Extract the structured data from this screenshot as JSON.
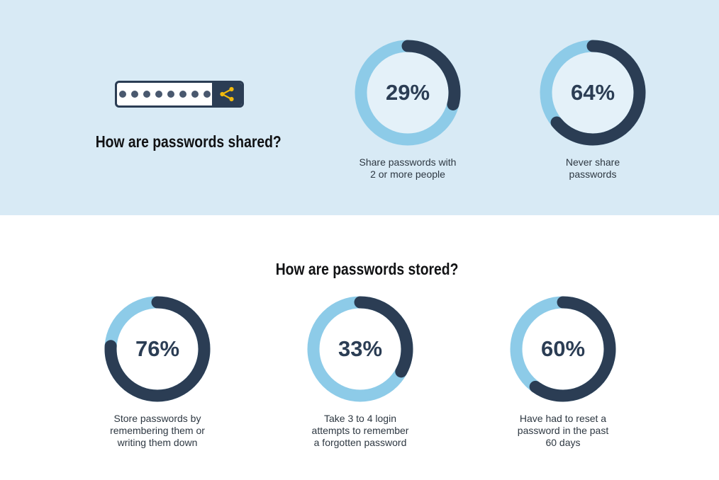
{
  "colors": {
    "background_top": "#D8EAF5",
    "background_bottom": "#FFFFFF",
    "ring_track": "#8DCBE8",
    "ring_value": "#2B3D54",
    "donut_inner_top": "#E4F1F9",
    "donut_inner_bottom": "#FFFFFF",
    "heading_text": "#111214",
    "caption_text": "#2E3842",
    "percent_text": "#2B3D54",
    "password_dot": "#49586E",
    "password_box_border": "#2B3D54",
    "share_icon": "#F2BA0D"
  },
  "shared_section": {
    "title": "How are passwords shared?",
    "password_illustration": {
      "dot_count": 8,
      "icon": "share-icon"
    },
    "charts": [
      {
        "percent": 29,
        "value_label": "29%",
        "label_lines": [
          "Share passwords with",
          "2 or more people"
        ]
      },
      {
        "percent": 64,
        "value_label": "64%",
        "label_lines": [
          "Never share",
          "passwords"
        ]
      }
    ]
  },
  "stored_section": {
    "title": "How are passwords stored?",
    "charts": [
      {
        "percent": 76,
        "value_label": "76%",
        "label_lines": [
          "Store passwords by",
          "remembering them or",
          "writing them down"
        ]
      },
      {
        "percent": 33,
        "value_label": "33%",
        "label_lines": [
          "Take 3 to 4 login",
          "attempts to remember",
          "a forgotten password"
        ]
      },
      {
        "percent": 60,
        "value_label": "60%",
        "label_lines": [
          "Have had to reset a",
          "password in the past",
          "60 days"
        ]
      }
    ]
  },
  "chart_data": [
    {
      "type": "pie",
      "style": "donut-gauge",
      "title": "How are passwords shared?",
      "unit": "%",
      "series": [
        {
          "name": "Share passwords with 2 or more people",
          "value": 29
        },
        {
          "name": "Never share passwords",
          "value": 64
        }
      ],
      "colors": {
        "value_arc": "#2B3D54",
        "track": "#8DCBE8"
      },
      "notes": "Each donut is an individual gauge; dark arc starts at 12 o'clock, clockwise, rounded caps; percent label centered"
    },
    {
      "type": "pie",
      "style": "donut-gauge",
      "title": "How are passwords stored?",
      "unit": "%",
      "series": [
        {
          "name": "Store passwords by remembering them or writing them down",
          "value": 76
        },
        {
          "name": "Take 3 to 4 login attempts to remember a forgotten password",
          "value": 33
        },
        {
          "name": "Have had to reset a password in the past 60 days",
          "value": 60
        }
      ],
      "colors": {
        "value_arc": "#2B3D54",
        "track": "#8DCBE8"
      },
      "notes": "Dark arc starts at 12 o'clock, clockwise, rounded caps; percent label centered"
    }
  ]
}
